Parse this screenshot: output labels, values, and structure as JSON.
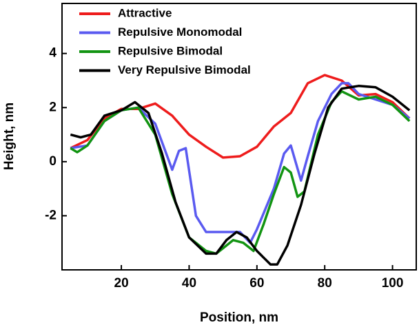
{
  "chart_data": {
    "type": "line",
    "xlabel": "Position, nm",
    "ylabel": "Height, nm",
    "xlim": [
      2.5,
      107
    ],
    "ylim": [
      -4,
      5.85
    ],
    "xticks": [
      20,
      40,
      60,
      80,
      100
    ],
    "yticks": [
      -2,
      0,
      2,
      4
    ],
    "grid": false,
    "legend": "upper left",
    "series": [
      {
        "name": "Attractive",
        "color": "#ee1c1c",
        "x": [
          5,
          10,
          15,
          20,
          25,
          30,
          35,
          40,
          45,
          50,
          55,
          60,
          65,
          70,
          75,
          80,
          85,
          90,
          95,
          100,
          105
        ],
        "values": [
          0.5,
          0.8,
          1.6,
          1.95,
          1.95,
          2.15,
          1.7,
          1.0,
          0.55,
          0.15,
          0.2,
          0.55,
          1.3,
          1.8,
          2.9,
          3.2,
          3.0,
          2.45,
          2.5,
          2.2,
          1.6
        ]
      },
      {
        "name": "Repulsive Monomodal",
        "color": "#5a5af0",
        "x": [
          5,
          10,
          15,
          20,
          25,
          30,
          35,
          37,
          39,
          42,
          45,
          50,
          55,
          58,
          60,
          65,
          68,
          70,
          73,
          75,
          78,
          82,
          85,
          87,
          90,
          95,
          100,
          105
        ],
        "values": [
          0.5,
          0.6,
          1.5,
          1.9,
          2.0,
          1.4,
          -0.3,
          0.4,
          0.5,
          -2.0,
          -2.6,
          -2.6,
          -2.6,
          -3.0,
          -2.5,
          -1.0,
          0.3,
          0.6,
          -0.7,
          0.2,
          1.5,
          2.5,
          2.9,
          2.9,
          2.5,
          2.3,
          2.1,
          1.6
        ]
      },
      {
        "name": "Repulsive Bimodal",
        "color": "#129412",
        "x": [
          5,
          7,
          10,
          15,
          20,
          25,
          30,
          35,
          40,
          45,
          48,
          50,
          53,
          56,
          59,
          62,
          65,
          68,
          70,
          72,
          74,
          78,
          82,
          85,
          90,
          95,
          100,
          105
        ],
        "values": [
          0.5,
          0.35,
          0.6,
          1.5,
          1.9,
          2.0,
          1.0,
          -1.2,
          -2.8,
          -3.3,
          -3.4,
          -3.2,
          -2.9,
          -3.0,
          -3.3,
          -2.3,
          -1.2,
          -0.2,
          -0.4,
          -1.3,
          -1.1,
          1.0,
          2.2,
          2.6,
          2.3,
          2.4,
          2.1,
          1.5
        ]
      },
      {
        "name": "Very Repulsive Bimodal",
        "color": "#000000",
        "x": [
          5,
          8,
          11,
          15,
          20,
          24,
          28,
          32,
          36,
          40,
          45,
          48,
          51,
          54,
          57,
          60,
          64,
          66,
          69,
          73,
          77,
          81,
          85,
          90,
          95,
          100,
          105
        ],
        "values": [
          1.0,
          0.9,
          1.0,
          1.7,
          1.9,
          2.2,
          1.8,
          0.3,
          -1.5,
          -2.8,
          -3.4,
          -3.4,
          -2.9,
          -2.6,
          -2.8,
          -3.3,
          -3.8,
          -3.8,
          -3.1,
          -1.6,
          0.3,
          2.0,
          2.7,
          2.8,
          2.75,
          2.4,
          1.9
        ]
      }
    ]
  }
}
